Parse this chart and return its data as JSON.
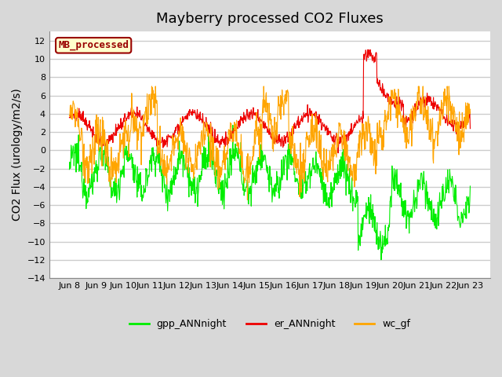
{
  "title": "Mayberry processed CO2 Fluxes",
  "ylabel": "CO2 Flux (urology/m2/s)",
  "ylim": [
    -14,
    13
  ],
  "yticks": [
    -14,
    -12,
    -10,
    -8,
    -6,
    -4,
    -2,
    0,
    2,
    4,
    6,
    8,
    10,
    12
  ],
  "x_labels": [
    "Jun 8",
    "Jun 9",
    "Jun 10",
    "Jun 11",
    "Jun 12",
    "Jun 13",
    "Jun 14",
    "Jun 15",
    "Jun 16",
    "Jun 17",
    "Jun 18",
    "Jun 19",
    "Jun 20",
    "Jun 21",
    "Jun 22",
    "Jun 23"
  ],
  "n_points": 960,
  "gpp_color": "#00ee00",
  "er_color": "#ee0000",
  "wc_color": "#ffa500",
  "legend_label": "MB_processed",
  "legend_bg": "#ffffcc",
  "legend_border": "#990000",
  "bg_color": "#d8d8d8",
  "plot_bg": "#ffffff",
  "grid_color": "#cccccc",
  "title_fontsize": 13,
  "axis_fontsize": 10,
  "tick_fontsize": 8,
  "line_width": 0.8,
  "seed": 12345
}
